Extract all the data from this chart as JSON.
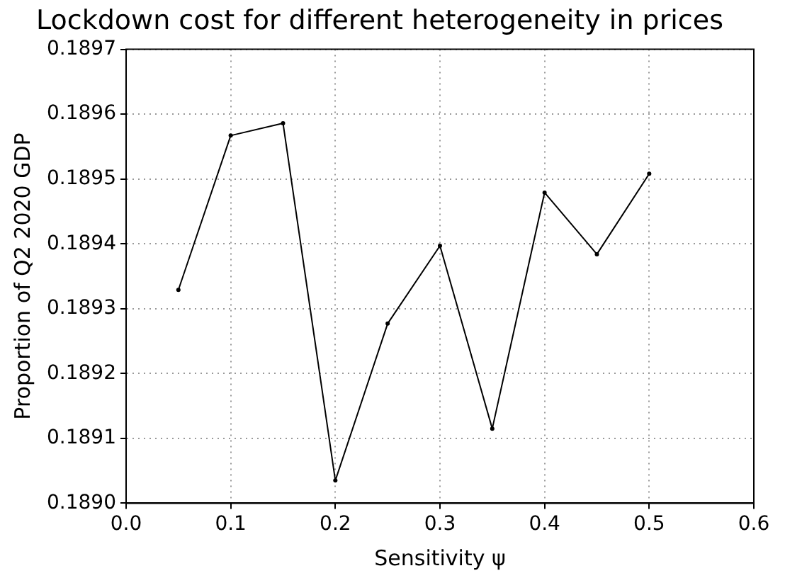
{
  "chart_data": {
    "type": "line",
    "title": "Lockdown cost for different heterogeneity in prices",
    "xlabel": "Sensitivity ψ",
    "ylabel": "Proportion of Q2 2020 GDP",
    "x": [
      0.05,
      0.1,
      0.15,
      0.2,
      0.25,
      0.3,
      0.35,
      0.4,
      0.45,
      0.5
    ],
    "series": [
      {
        "color": "#000000",
        "values": [
          0.189329,
          0.189567,
          0.189586,
          0.189035,
          0.189277,
          0.189397,
          0.189115,
          0.189479,
          0.189384,
          0.189508
        ]
      }
    ],
    "xlim": [
      0,
      0.6
    ],
    "xticks": [
      {
        "value": 0,
        "label": "0.0"
      },
      0.1,
      0.2,
      0.3,
      0.4,
      0.5,
      0.6
    ],
    "ylim": [
      0.189,
      0.1897
    ],
    "yticks": [
      {
        "value": 0.189,
        "label": "0.1890"
      },
      0.1891,
      0.1892,
      0.1893,
      0.1894,
      0.1895,
      0.1896,
      0.1897
    ],
    "grid": true,
    "marker": "circle",
    "line_style": "solid"
  }
}
